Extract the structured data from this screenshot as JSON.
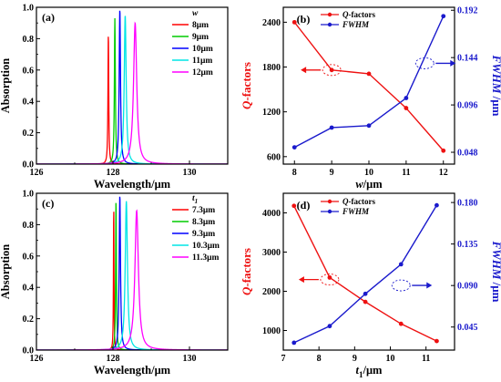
{
  "chart_data": [
    {
      "id": "a",
      "type": "line",
      "panel_label": "(a)",
      "xlabel": "Wavelength/μm",
      "ylabel": "Absorption",
      "xlim": [
        126,
        131
      ],
      "ylim": [
        0,
        1.0
      ],
      "x_ticks": [
        "126",
        "128",
        "130"
      ],
      "y_ticks": [
        "0.0",
        "0.2",
        "0.4",
        "0.6",
        "0.8",
        "1.0"
      ],
      "grid": false,
      "legend_title": "w",
      "legend_position": "top-right",
      "curve_type": "lorentzian",
      "series": [
        {
          "name": "8μm",
          "color": "#ff0000",
          "peak_x": 127.88,
          "peak_y": 0.84,
          "half_width": 0.012
        },
        {
          "name": "9μm",
          "color": "#00cc00",
          "peak_x": 128.05,
          "peak_y": 0.93,
          "half_width": 0.015
        },
        {
          "name": "10μm",
          "color": "#0000ff",
          "peak_x": 128.18,
          "peak_y": 0.99,
          "half_width": 0.02
        },
        {
          "name": "11μm",
          "color": "#00e5e5",
          "peak_x": 128.32,
          "peak_y": 0.95,
          "half_width": 0.03
        },
        {
          "name": "12μm",
          "color": "#ff00ff",
          "peak_x": 128.58,
          "peak_y": 0.9,
          "half_width": 0.05
        }
      ]
    },
    {
      "id": "b",
      "type": "line",
      "panel_label": "(b)",
      "xlabel_prefix": "w",
      "xlabel_suffix": "/μm",
      "ylabel_left": "Q-factors",
      "ylabel_right": "FWHM /μm",
      "x": [
        8,
        9,
        10,
        11,
        12
      ],
      "x_ticks": [
        "8",
        "9",
        "10",
        "11",
        "12"
      ],
      "xlim": [
        7.7,
        12.3
      ],
      "ylim_left": [
        500,
        2600
      ],
      "ylim_right": [
        0.036,
        0.195
      ],
      "y_ticks_left": [
        "600",
        "1200",
        "1800",
        "2400"
      ],
      "y_ticks_right": [
        "0.048",
        "0.096",
        "0.144",
        "0.192"
      ],
      "legend_position": "top-center",
      "series": [
        {
          "name": "Q-factors",
          "axis": "left",
          "color": "#ee1111",
          "values": [
            2400,
            1760,
            1710,
            1250,
            680
          ]
        },
        {
          "name": "FWHM",
          "axis": "right",
          "color": "#1a1acc",
          "values": [
            0.053,
            0.073,
            0.075,
            0.103,
            0.186
          ]
        }
      ],
      "annotations": [
        {
          "shape": "dashed-ellipse",
          "x": 9.0,
          "y": 1760,
          "axis": "left",
          "arrow": "left"
        },
        {
          "shape": "dashed-ellipse",
          "x": 11.5,
          "y": 1850,
          "axis": "left",
          "arrow": "right"
        }
      ]
    },
    {
      "id": "c",
      "type": "line",
      "panel_label": "(c)",
      "xlabel": "Wavelength/μm",
      "ylabel": "Absorption",
      "xlim": [
        126,
        131
      ],
      "ylim": [
        0,
        1.0
      ],
      "x_ticks": [
        "126",
        "128",
        "130"
      ],
      "y_ticks": [
        "0.0",
        "0.2",
        "0.4",
        "0.6",
        "0.8",
        "1.0"
      ],
      "grid": false,
      "legend_title": "t1",
      "legend_position": "top-right",
      "curve_type": "lorentzian",
      "series": [
        {
          "name": "7.3μm",
          "color": "#ff0000",
          "peak_x": 128.02,
          "peak_y": 0.95,
          "half_width": 0.008
        },
        {
          "name": "8.3μm",
          "color": "#00cc00",
          "peak_x": 128.08,
          "peak_y": 0.97,
          "half_width": 0.012
        },
        {
          "name": "9.3μm",
          "color": "#0000ff",
          "peak_x": 128.18,
          "peak_y": 0.99,
          "half_width": 0.02
        },
        {
          "name": "10.3μm",
          "color": "#00e5e5",
          "peak_x": 128.35,
          "peak_y": 0.95,
          "half_width": 0.035
        },
        {
          "name": "11.3μm",
          "color": "#ff00ff",
          "peak_x": 128.62,
          "peak_y": 0.89,
          "half_width": 0.055
        }
      ]
    },
    {
      "id": "d",
      "type": "line",
      "panel_label": "(d)",
      "xlabel_prefix": "t",
      "xlabel_sub": "1",
      "xlabel_suffix": "/μm",
      "ylabel_left": "Q-factors",
      "ylabel_right": "FWHM /μm",
      "x": [
        7.3,
        8.3,
        9.3,
        10.3,
        11.3
      ],
      "x_ticks": [
        "7",
        "8",
        "9",
        "10",
        "11"
      ],
      "xlim": [
        7,
        11.8
      ],
      "ylim_left": [
        500,
        4500
      ],
      "ylim_right": [
        0.02,
        0.19
      ],
      "y_ticks_left": [
        "1000",
        "2000",
        "3000",
        "4000"
      ],
      "y_ticks_right": [
        "0.045",
        "0.090",
        "0.135",
        "0.180"
      ],
      "legend_position": "top-center",
      "series": [
        {
          "name": "Q-factors",
          "axis": "left",
          "color": "#ee1111",
          "values": [
            4180,
            2350,
            1730,
            1170,
            730
          ]
        },
        {
          "name": "FWHM",
          "axis": "right",
          "color": "#1a1acc",
          "values": [
            0.028,
            0.046,
            0.081,
            0.113,
            0.177
          ]
        }
      ],
      "annotations": [
        {
          "shape": "dashed-ellipse",
          "x": 8.3,
          "y": 2300,
          "axis": "left",
          "arrow": "left"
        },
        {
          "shape": "dashed-ellipse",
          "x": 10.3,
          "y": 2150,
          "axis": "left",
          "arrow": "right"
        }
      ]
    }
  ]
}
